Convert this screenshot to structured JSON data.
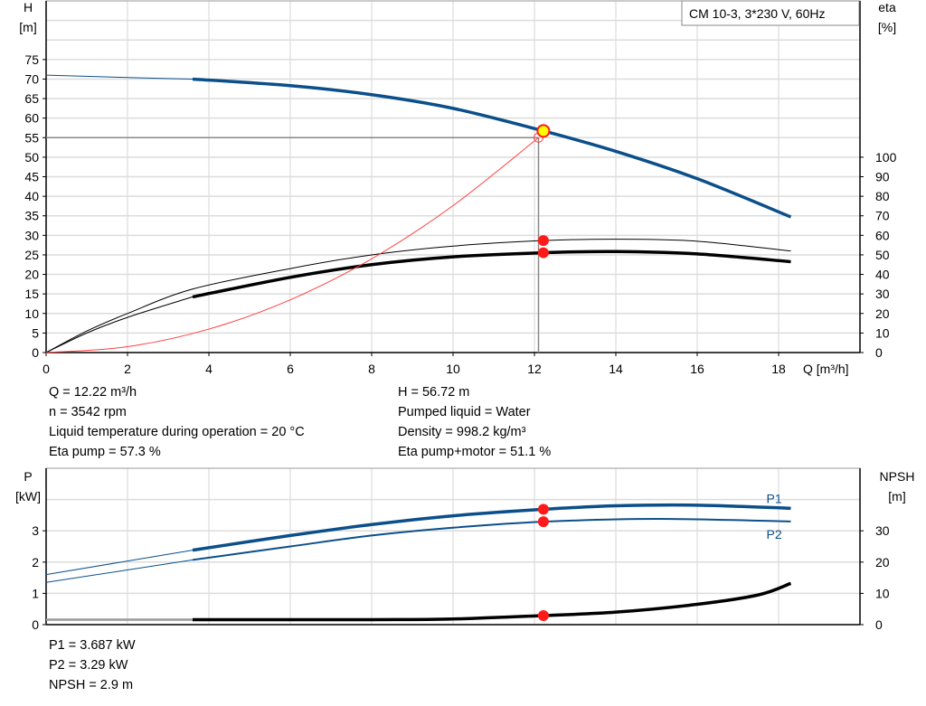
{
  "chart_data": [
    {
      "type": "line",
      "title": "CM 10-3, 3*230 V, 60Hz",
      "xlabel": "Q [m³/h]",
      "xlim": [
        0,
        20
      ],
      "xticks": [
        0,
        2,
        4,
        6,
        8,
        10,
        12,
        14,
        16,
        18
      ],
      "ylabel": "H",
      "yunit": "[m]",
      "ylim": [
        0,
        90
      ],
      "yticks": [
        0,
        5,
        10,
        15,
        20,
        25,
        30,
        35,
        40,
        45,
        50,
        55,
        60,
        65,
        70,
        75
      ],
      "y2label": "eta",
      "y2unit": "[%]",
      "y2lim": [
        0,
        180
      ],
      "y2ticks": [
        0,
        10,
        20,
        30,
        40,
        50,
        60,
        70,
        80,
        90,
        100
      ],
      "grid": true,
      "series": [
        {
          "id": "H",
          "axis": "left",
          "color": "#0b4f8a",
          "points": [
            [
              0,
              71
            ],
            [
              2,
              70.4
            ],
            [
              3.6,
              70
            ],
            [
              6,
              68.3
            ],
            [
              8,
              66
            ],
            [
              10,
              62.5
            ],
            [
              12.22,
              56.72
            ],
            [
              14,
              51.5
            ],
            [
              16,
              44.5
            ],
            [
              18.3,
              34.7
            ]
          ],
          "thin_until": 3.6
        },
        {
          "id": "eta_pump",
          "axis": "right",
          "color": "#000000",
          "points": [
            [
              0,
              0
            ],
            [
              1,
              11
            ],
            [
              2,
              20
            ],
            [
              3.6,
              32.5
            ],
            [
              6,
              43
            ],
            [
              8,
              50
            ],
            [
              10,
              54.5
            ],
            [
              12.22,
              57.3
            ],
            [
              14,
              58
            ],
            [
              16,
              57
            ],
            [
              18.3,
              52
            ]
          ],
          "thin_until": 18.3
        },
        {
          "id": "eta_pump_motor",
          "axis": "right",
          "color": "#000000",
          "points": [
            [
              0,
              0
            ],
            [
              1,
              10
            ],
            [
              2,
              18
            ],
            [
              3.6,
              28.5
            ],
            [
              6,
              38.5
            ],
            [
              8,
              45
            ],
            [
              10,
              49
            ],
            [
              12.22,
              51.1
            ],
            [
              14,
              51.7
            ],
            [
              16,
              50.5
            ],
            [
              18.3,
              46.5
            ]
          ],
          "thin_until": 3.6
        },
        {
          "id": "system",
          "axis": "left",
          "color": "#ff4040",
          "points": [
            [
              0,
              0
            ],
            [
              2,
              1.5
            ],
            [
              4,
              6
            ],
            [
              6,
              13.5
            ],
            [
              8,
              24
            ],
            [
              10,
              37.6
            ],
            [
              12.1,
              55
            ]
          ],
          "thin_until": 99
        }
      ],
      "duty_point": {
        "Q": 12.22,
        "H": 56.72,
        "eta_pump": 57.3,
        "eta_pump_motor": 51.1,
        "system_H": 55
      }
    },
    {
      "type": "line",
      "xlim": [
        0,
        20
      ],
      "ylabel": "P",
      "yunit": "[kW]",
      "ylim": [
        0,
        5
      ],
      "yticks": [
        0,
        1,
        2,
        3
      ],
      "y2label": "NPSH",
      "y2unit": "[m]",
      "y2lim": [
        0,
        50
      ],
      "y2ticks": [
        0,
        10,
        20,
        30
      ],
      "grid": true,
      "series": [
        {
          "id": "P1",
          "name": "P1",
          "axis": "left",
          "color": "#0b4f8a",
          "points": [
            [
              0,
              1.6
            ],
            [
              3.6,
              2.38
            ],
            [
              6,
              2.85
            ],
            [
              8,
              3.2
            ],
            [
              10,
              3.48
            ],
            [
              12.22,
              3.687
            ],
            [
              14,
              3.8
            ],
            [
              16,
              3.82
            ],
            [
              18.3,
              3.72
            ]
          ],
          "thin_until": 3.6
        },
        {
          "id": "P2",
          "name": "P2",
          "axis": "left",
          "color": "#0b4f8a",
          "points": [
            [
              0,
              1.35
            ],
            [
              3.6,
              2.07
            ],
            [
              6,
              2.5
            ],
            [
              8,
              2.85
            ],
            [
              10,
              3.1
            ],
            [
              12.22,
              3.29
            ],
            [
              15,
              3.38
            ],
            [
              18.3,
              3.3
            ]
          ],
          "thin_until": 3.6
        },
        {
          "id": "NPSH",
          "axis": "right",
          "color": "#000000",
          "points": [
            [
              0,
              1.6
            ],
            [
              3.6,
              1.6
            ],
            [
              8,
              1.6
            ],
            [
              10,
              1.8
            ],
            [
              12.22,
              2.9
            ],
            [
              14,
              4
            ],
            [
              16,
              6.5
            ],
            [
              17.5,
              9.5
            ],
            [
              18.3,
              13.2
            ]
          ],
          "thin_until": 3.6
        }
      ],
      "duty_point": {
        "Q": 12.22,
        "P1": 3.687,
        "P2": 3.29,
        "NPSH": 2.9
      }
    }
  ],
  "info_top_left": [
    "Q = 12.22 m³/h",
    "n = 3542 rpm",
    "Liquid temperature during operation = 20 °C",
    "Eta pump = 57.3 %"
  ],
  "info_top_right": [
    "H = 56.72 m",
    "Pumped liquid = Water",
    "Density = 998.2 kg/m³",
    "Eta pump+motor = 51.1 %"
  ],
  "info_bottom": [
    "P1 = 3.687 kW",
    "P2 = 3.29 kW",
    "NPSH = 2.9 m"
  ]
}
